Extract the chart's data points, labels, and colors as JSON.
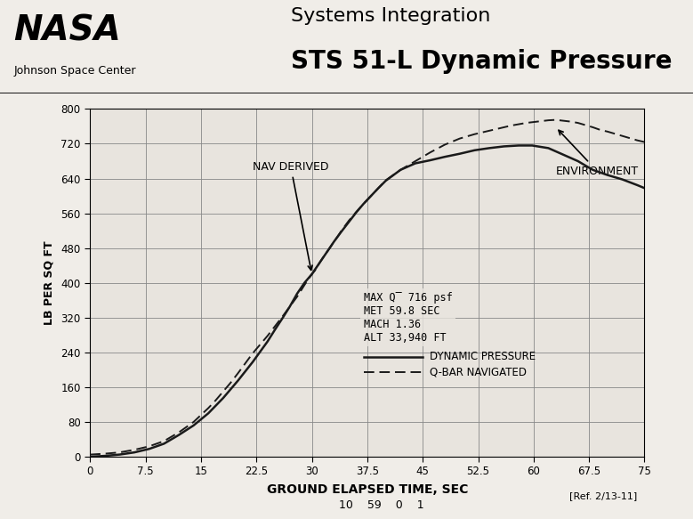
{
  "title_line1": "Systems Integration",
  "title_line2": "STS 51-L Dynamic Pressure",
  "nasa_text": "NASA",
  "center_text": "Johnson Space Center",
  "xlabel": "GROUND ELAPSED TIME, SEC",
  "ylabel": "LB PER SQ FT",
  "xlim": [
    0,
    75
  ],
  "ylim": [
    0,
    800
  ],
  "xticks": [
    0,
    7.5,
    15,
    22.5,
    30,
    37.5,
    45,
    52.5,
    60,
    67.5,
    75
  ],
  "yticks": [
    0,
    80,
    160,
    240,
    320,
    400,
    480,
    560,
    640,
    720,
    800
  ],
  "annotation_text": "MAX Q̅ 716 psf\nMET 59.8 SEC\nMACH 1.36\nALT 33,940 FT",
  "legend_solid": "DYNAMIC PRESSURE",
  "legend_dashed": "Q-BAR NAVIGATED",
  "nav_label": "NAV DERIVED",
  "env_label": "ENVIRONMENT",
  "ref_text": "[Ref. 2/13-11]",
  "bottom_numbers": "10    59    0    1",
  "background_color": "#f0ede8",
  "plot_bg_color": "#e8e4de",
  "line_color": "#1a1a1a",
  "solid_x": [
    0,
    2,
    4,
    6,
    8,
    10,
    12,
    14,
    16,
    18,
    20,
    22,
    24,
    25,
    26,
    27,
    28,
    29,
    30,
    31,
    32,
    33,
    34,
    35,
    36,
    37,
    38,
    39,
    40,
    42,
    44,
    46,
    48,
    50,
    52,
    54,
    56,
    58,
    59.8,
    62,
    64,
    66,
    68,
    70,
    72,
    74,
    75
  ],
  "solid_y": [
    0,
    2,
    5,
    10,
    18,
    30,
    50,
    72,
    100,
    135,
    175,
    218,
    265,
    292,
    318,
    345,
    375,
    400,
    420,
    445,
    470,
    495,
    518,
    540,
    562,
    582,
    600,
    618,
    635,
    660,
    675,
    682,
    690,
    697,
    705,
    710,
    714,
    716,
    716,
    710,
    695,
    680,
    660,
    648,
    638,
    625,
    618
  ],
  "dashed_x": [
    0,
    2,
    4,
    6,
    8,
    10,
    12,
    14,
    16,
    17,
    18,
    19,
    20,
    21,
    22,
    23,
    24,
    25,
    26,
    27,
    28,
    29,
    29.5,
    30,
    30.5,
    31,
    31.5,
    32,
    32.5,
    33,
    33.5,
    34,
    35,
    36,
    37,
    38,
    39,
    40,
    42,
    44,
    46,
    48,
    50,
    52,
    54,
    56,
    57,
    58,
    59,
    60,
    61,
    62,
    63,
    64,
    65,
    66,
    67,
    68,
    69,
    70,
    71,
    72,
    73,
    74,
    75
  ],
  "dashed_y": [
    5,
    7,
    10,
    16,
    24,
    36,
    56,
    80,
    112,
    130,
    150,
    170,
    192,
    215,
    238,
    258,
    278,
    300,
    322,
    345,
    368,
    395,
    408,
    420,
    430,
    445,
    458,
    470,
    482,
    495,
    507,
    520,
    543,
    563,
    582,
    600,
    618,
    636,
    660,
    680,
    700,
    718,
    732,
    742,
    750,
    758,
    762,
    765,
    768,
    770,
    772,
    774,
    775,
    773,
    771,
    768,
    763,
    758,
    752,
    748,
    743,
    738,
    733,
    728,
    724
  ]
}
